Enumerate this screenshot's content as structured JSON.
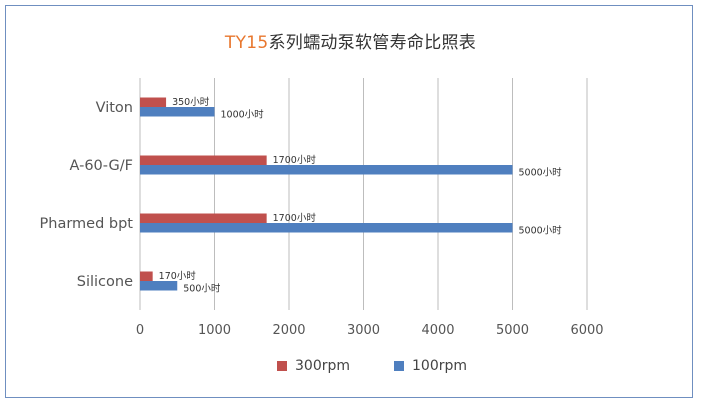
{
  "title": {
    "highlight": "TY15",
    "rest": "系列蠕动泵软管寿命比照表"
  },
  "colors": {
    "s300": "#c0504d",
    "s100": "#4f7fbf"
  },
  "chart_data": {
    "type": "bar",
    "orientation": "horizontal",
    "categories": [
      "Viton",
      "A-60-G/F",
      "Pharmed bpt",
      "Silicone"
    ],
    "series": [
      {
        "name": "300rpm",
        "values": [
          350,
          1700,
          1700,
          170
        ],
        "labels": [
          "350小时",
          "1700小时",
          "1700小时",
          "170小时"
        ]
      },
      {
        "name": "100rpm",
        "values": [
          1000,
          5000,
          5000,
          500
        ],
        "labels": [
          "1000小时",
          "5000小时",
          "5000小时",
          "500小时"
        ]
      }
    ],
    "xlim": [
      0,
      6000
    ],
    "xticks": [
      "0",
      "1000",
      "2000",
      "3000",
      "4000",
      "5000",
      "6000"
    ],
    "grid": "vertical",
    "legend": "bottom"
  }
}
